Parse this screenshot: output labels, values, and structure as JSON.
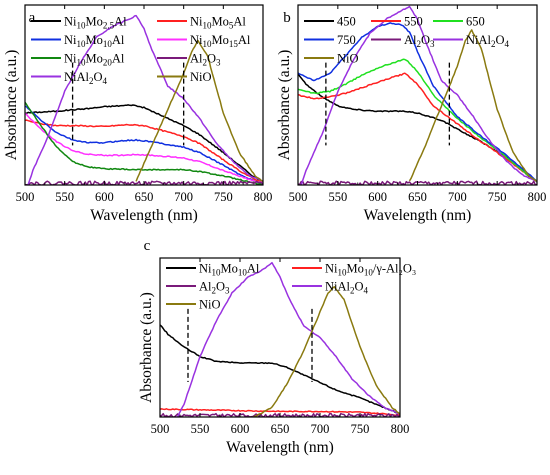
{
  "chart_data": [
    {
      "panel_label": "a",
      "type": "line",
      "xlabel": "Wavelength (nm)",
      "ylabel": "Absorbance (a.u.)",
      "xlim": [
        500,
        800
      ],
      "xticks": [
        500,
        550,
        600,
        650,
        700,
        750,
        800
      ],
      "ylim": [
        0,
        1
      ],
      "y_ticklabels_shown": false,
      "grid": false,
      "legend_position": "top, 2 columns",
      "dashed_markers_x": [
        560,
        700
      ],
      "series": [
        {
          "name": "Ni10Mo2.5Al",
          "base": "Ni",
          "sub1": "10",
          "mid": "Mo",
          "sub2": "2.5",
          "tail": "Al",
          "color": "#000000",
          "x": [
            500,
            520,
            540,
            560,
            580,
            600,
            620,
            635,
            650,
            670,
            700,
            720,
            750,
            770,
            790,
            800
          ],
          "y": [
            0.4,
            0.405,
            0.41,
            0.418,
            0.425,
            0.435,
            0.44,
            0.445,
            0.43,
            0.39,
            0.33,
            0.28,
            0.18,
            0.11,
            0.04,
            0.02
          ]
        },
        {
          "name": "Ni10Mo5Al",
          "base": "Ni",
          "sub1": "10",
          "mid": "Mo",
          "sub2": "5",
          "tail": "Al",
          "color": "#ff2020",
          "x": [
            500,
            520,
            540,
            560,
            600,
            630,
            650,
            700,
            720,
            750,
            770,
            790,
            800
          ],
          "y": [
            0.36,
            0.34,
            0.33,
            0.33,
            0.325,
            0.335,
            0.33,
            0.27,
            0.23,
            0.14,
            0.08,
            0.03,
            0.02
          ]
        },
        {
          "name": "Ni10Mo10Al",
          "base": "Ni",
          "sub1": "10",
          "mid": "Mo",
          "sub2": "10",
          "tail": "Al",
          "color": "#1030e0",
          "x": [
            500,
            520,
            540,
            560,
            580,
            600,
            620,
            640,
            660,
            700,
            720,
            750,
            770,
            790,
            800
          ],
          "y": [
            0.44,
            0.36,
            0.29,
            0.25,
            0.235,
            0.235,
            0.245,
            0.25,
            0.24,
            0.21,
            0.18,
            0.11,
            0.06,
            0.02,
            0.01
          ]
        },
        {
          "name": "Ni10Mo15Al",
          "base": "Ni",
          "sub1": "10",
          "mid": "Mo",
          "sub2": "15",
          "tail": "Al",
          "color": "#ff30ff",
          "x": [
            500,
            520,
            540,
            560,
            580,
            600,
            620,
            640,
            660,
            700,
            720,
            750,
            770,
            790,
            800
          ],
          "y": [
            0.4,
            0.31,
            0.24,
            0.19,
            0.17,
            0.165,
            0.165,
            0.17,
            0.165,
            0.15,
            0.13,
            0.08,
            0.05,
            0.02,
            0.01
          ]
        },
        {
          "name": "Ni10Mo20Al",
          "base": "Ni",
          "sub1": "10",
          "mid": "Mo",
          "sub2": "20",
          "tail": "Al",
          "color": "#118811",
          "x": [
            500,
            520,
            540,
            560,
            580,
            600,
            640,
            680,
            700,
            720,
            750,
            770,
            790,
            800
          ],
          "y": [
            0.46,
            0.33,
            0.21,
            0.13,
            0.1,
            0.09,
            0.085,
            0.085,
            0.085,
            0.075,
            0.05,
            0.03,
            0.01,
            0.005
          ]
        },
        {
          "name": "Al2O3",
          "base": "Al",
          "sub1": "2",
          "mid": "O",
          "sub2": "3",
          "tail": "",
          "color": "#7a1a7a",
          "noise": true,
          "x": [
            500,
            560,
            620,
            680,
            740,
            800
          ],
          "y": [
            0.01,
            0.01,
            0.01,
            0.01,
            0.01,
            0.01
          ]
        },
        {
          "name": "NiAl2O4",
          "base": "NiAl",
          "sub1": "2",
          "mid": "O",
          "sub2": "4",
          "tail": "",
          "color": "#9932e0",
          "x": [
            500,
            510,
            530,
            550,
            570,
            590,
            610,
            630,
            640,
            650,
            660,
            680,
            700,
            720,
            740,
            760,
            780,
            800
          ],
          "y": [
            -0.05,
            0.08,
            0.28,
            0.52,
            0.68,
            0.82,
            0.88,
            0.92,
            0.94,
            0.87,
            0.75,
            0.55,
            0.48,
            0.37,
            0.24,
            0.14,
            0.06,
            0.02
          ]
        },
        {
          "name": "NiO",
          "base": "NiO",
          "sub1": "",
          "mid": "",
          "sub2": "",
          "tail": "",
          "color": "#8a7a10",
          "x": [
            640,
            660,
            680,
            700,
            710,
            718,
            730,
            750,
            770,
            790,
            800
          ],
          "y": [
            0.02,
            0.22,
            0.42,
            0.62,
            0.74,
            0.8,
            0.72,
            0.4,
            0.18,
            0.05,
            0.02
          ]
        }
      ]
    },
    {
      "panel_label": "b",
      "type": "line",
      "xlabel": "Wavelength (nm)",
      "ylabel": "Absorbance (a.u.)",
      "xlim": [
        500,
        800
      ],
      "xticks": [
        500,
        550,
        600,
        650,
        700,
        750,
        800
      ],
      "ylim": [
        0,
        1
      ],
      "y_ticklabels_shown": false,
      "grid": false,
      "legend_position": "top, 3 columns",
      "dashed_markers_x": [
        535,
        690
      ],
      "series": [
        {
          "name": "450",
          "base": "450",
          "sub1": "",
          "mid": "",
          "sub2": "",
          "tail": "",
          "color": "#000000",
          "x": [
            500,
            510,
            530,
            550,
            570,
            600,
            630,
            650,
            680,
            700,
            730,
            760,
            790,
            800
          ],
          "y": [
            0.62,
            0.56,
            0.49,
            0.44,
            0.42,
            0.41,
            0.41,
            0.4,
            0.36,
            0.31,
            0.24,
            0.16,
            0.05,
            0.02
          ]
        },
        {
          "name": "550",
          "base": "550",
          "sub1": "",
          "mid": "",
          "sub2": "",
          "tail": "",
          "color": "#ff2020",
          "x": [
            500,
            520,
            540,
            560,
            580,
            600,
            620,
            635,
            650,
            670,
            700,
            730,
            760,
            790,
            800
          ],
          "y": [
            0.5,
            0.48,
            0.49,
            0.51,
            0.54,
            0.57,
            0.6,
            0.62,
            0.56,
            0.44,
            0.34,
            0.24,
            0.15,
            0.05,
            0.02
          ]
        },
        {
          "name": "650",
          "base": "650",
          "sub1": "",
          "mid": "",
          "sub2": "",
          "tail": "",
          "color": "#20e020",
          "x": [
            500,
            520,
            540,
            560,
            580,
            600,
            620,
            635,
            650,
            670,
            700,
            730,
            760,
            790,
            800
          ],
          "y": [
            0.53,
            0.51,
            0.52,
            0.56,
            0.61,
            0.65,
            0.68,
            0.7,
            0.63,
            0.5,
            0.37,
            0.26,
            0.16,
            0.05,
            0.02
          ]
        },
        {
          "name": "750",
          "base": "750",
          "sub1": "",
          "mid": "",
          "sub2": "",
          "tail": "",
          "color": "#1030e0",
          "x": [
            500,
            520,
            540,
            560,
            580,
            600,
            615,
            630,
            640,
            650,
            670,
            700,
            730,
            760,
            790,
            800
          ],
          "y": [
            0.62,
            0.58,
            0.62,
            0.72,
            0.82,
            0.88,
            0.9,
            0.89,
            0.85,
            0.74,
            0.55,
            0.38,
            0.27,
            0.17,
            0.06,
            0.02
          ]
        },
        {
          "name": "Al2O3",
          "base": "Al",
          "sub1": "2",
          "mid": "O",
          "sub2": "3",
          "tail": "",
          "color": "#7a1a7a",
          "noise": true,
          "x": [
            500,
            560,
            620,
            680,
            740,
            800
          ],
          "y": [
            0.01,
            0.01,
            0.01,
            0.01,
            0.01,
            0.01
          ]
        },
        {
          "name": "NiAl2O4",
          "base": "NiAl",
          "sub1": "2",
          "mid": "O",
          "sub2": "4",
          "tail": "",
          "color": "#9932e0",
          "x": [
            500,
            510,
            530,
            550,
            570,
            590,
            610,
            630,
            640,
            650,
            660,
            680,
            700,
            720,
            740,
            760,
            780,
            800
          ],
          "y": [
            -0.05,
            0.08,
            0.28,
            0.52,
            0.7,
            0.84,
            0.92,
            0.97,
            0.99,
            0.92,
            0.8,
            0.58,
            0.5,
            0.38,
            0.25,
            0.14,
            0.06,
            0.02
          ]
        },
        {
          "name": "NiO",
          "base": "NiO",
          "sub1": "",
          "mid": "",
          "sub2": "",
          "tail": "",
          "color": "#8a7a10",
          "x": [
            640,
            660,
            680,
            700,
            710,
            718,
            730,
            750,
            770,
            790,
            800
          ],
          "y": [
            0.02,
            0.22,
            0.44,
            0.66,
            0.8,
            0.86,
            0.76,
            0.42,
            0.18,
            0.05,
            0.02
          ]
        }
      ]
    },
    {
      "panel_label": "c",
      "type": "line",
      "xlabel": "Wavelength (nm)",
      "ylabel": "Absorbance (a.u.)",
      "xlim": [
        500,
        800
      ],
      "xticks": [
        500,
        550,
        600,
        650,
        700,
        750,
        800
      ],
      "ylim": [
        0,
        1
      ],
      "y_ticklabels_shown": false,
      "grid": false,
      "legend_position": "top, 2 columns",
      "dashed_markers_x": [
        535,
        690
      ],
      "series": [
        {
          "name": "Ni10Mo10Al",
          "base": "Ni",
          "sub1": "10",
          "mid": "Mo",
          "sub2": "10",
          "tail": "Al",
          "color": "#000000",
          "x": [
            500,
            510,
            530,
            550,
            570,
            600,
            640,
            660,
            690,
            720,
            750,
            780,
            800
          ],
          "y": [
            0.58,
            0.52,
            0.44,
            0.38,
            0.35,
            0.34,
            0.34,
            0.31,
            0.24,
            0.17,
            0.12,
            0.06,
            0.02
          ]
        },
        {
          "name": "Ni10Mo10/γ-Al2O3",
          "base": "Ni",
          "sub1": "10",
          "mid": "Mo",
          "sub2": "10",
          "tail": "/γ-Al₂O₃",
          "color": "#ff2020",
          "x": [
            500,
            550,
            600,
            650,
            700,
            750,
            780,
            800
          ],
          "y": [
            0.05,
            0.045,
            0.04,
            0.035,
            0.035,
            0.03,
            0.02,
            0.01
          ]
        },
        {
          "name": "Al2O3",
          "base": "Al",
          "sub1": "2",
          "mid": "O",
          "sub2": "3",
          "tail": "",
          "color": "#7a1a7a",
          "noise": true,
          "x": [
            500,
            560,
            620,
            680,
            740,
            800
          ],
          "y": [
            0.01,
            0.01,
            0.01,
            0.01,
            0.01,
            0.01
          ]
        },
        {
          "name": "NiAl2O4",
          "base": "NiAl",
          "sub1": "2",
          "mid": "O",
          "sub2": "4",
          "tail": "",
          "color": "#9932e0",
          "x": [
            520,
            530,
            550,
            570,
            590,
            610,
            630,
            640,
            650,
            660,
            680,
            700,
            720,
            740,
            760,
            780,
            800
          ],
          "y": [
            -0.02,
            0.08,
            0.38,
            0.6,
            0.78,
            0.88,
            0.93,
            0.97,
            0.88,
            0.76,
            0.57,
            0.5,
            0.38,
            0.24,
            0.14,
            0.06,
            0.02
          ]
        },
        {
          "name": "NiO",
          "base": "NiO",
          "sub1": "",
          "mid": "",
          "sub2": "",
          "tail": "",
          "color": "#8a7a10",
          "x": [
            610,
            640,
            660,
            680,
            700,
            710,
            718,
            730,
            750,
            770,
            790,
            800
          ],
          "y": [
            -0.02,
            0.06,
            0.22,
            0.42,
            0.66,
            0.78,
            0.82,
            0.74,
            0.44,
            0.2,
            0.06,
            0.02
          ]
        }
      ]
    }
  ]
}
